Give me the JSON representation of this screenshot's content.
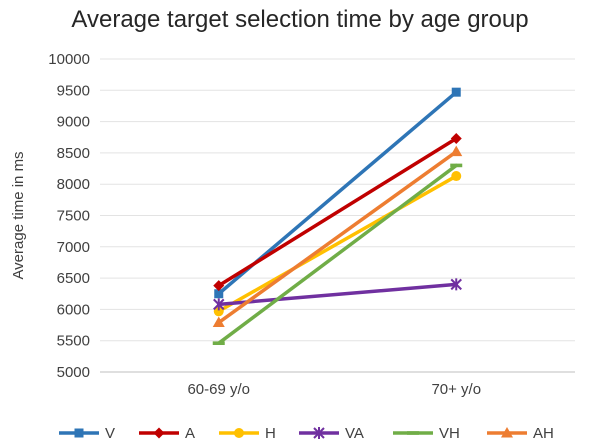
{
  "chart_data": {
    "type": "line",
    "title": "Average target selection time by age group",
    "xlabel": "",
    "ylabel": "Average time in ms",
    "categories": [
      "60-69 y/o",
      "70+ y/o"
    ],
    "ylim": [
      5000,
      10000
    ],
    "yticks": [
      5000,
      5500,
      6000,
      6500,
      7000,
      7500,
      8000,
      8500,
      9000,
      9500,
      10000
    ],
    "grid": true,
    "legend_position": "bottom",
    "series": [
      {
        "name": "V",
        "values": [
          6250,
          9470
        ],
        "color": "#2E75B6",
        "marker": "square"
      },
      {
        "name": "A",
        "values": [
          6380,
          8730
        ],
        "color": "#C00000",
        "marker": "diamond"
      },
      {
        "name": "H",
        "values": [
          5970,
          8130
        ],
        "color": "#FFC000",
        "marker": "circle"
      },
      {
        "name": "VA",
        "values": [
          6080,
          6400
        ],
        "color": "#7030A0",
        "marker": "star"
      },
      {
        "name": "VH",
        "values": [
          5460,
          8300
        ],
        "color": "#70AD47",
        "marker": "dash"
      },
      {
        "name": "AH",
        "values": [
          5790,
          8520
        ],
        "color": "#ED7D31",
        "marker": "triangle"
      }
    ]
  }
}
